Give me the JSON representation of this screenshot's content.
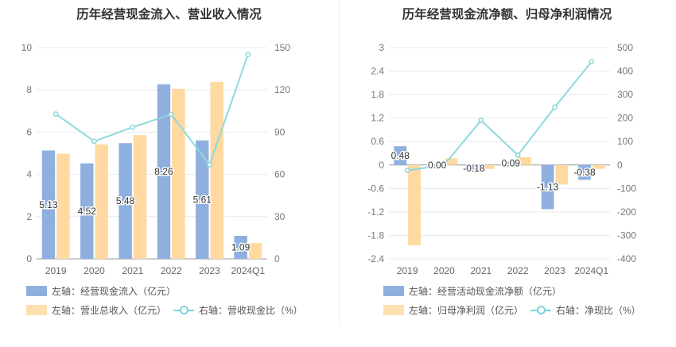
{
  "colors": {
    "bar1": "#8fb0de",
    "bar2": "#ffd9a0",
    "line": "#8fd9dd",
    "grid": "#e6e9f0",
    "axis": "#666666"
  },
  "chart_data": [
    {
      "type": "bar",
      "title": "历年经营现金流入、营业收入情况",
      "categories": [
        "2019",
        "2020",
        "2021",
        "2022",
        "2023",
        "2024Q1"
      ],
      "series": [
        {
          "name": "左轴：经营现金流入（亿元）",
          "axis": "left",
          "kind": "bar",
          "values": [
            5.13,
            4.52,
            5.48,
            8.26,
            5.61,
            1.09
          ],
          "labels": [
            "5.13",
            "4.52",
            "5.48",
            "8.26",
            "5.61",
            "1.09"
          ]
        },
        {
          "name": "左轴：营业总收入（亿元）",
          "axis": "left",
          "kind": "bar",
          "values": [
            4.98,
            5.42,
            5.86,
            8.05,
            8.38,
            0.75
          ]
        },
        {
          "name": "右轴：营收现金比（%）",
          "axis": "right",
          "kind": "line",
          "values": [
            102.9,
            83.5,
            93.5,
            102.6,
            66.9,
            145.1
          ]
        }
      ],
      "left_ticks": [
        "0",
        "2",
        "4",
        "6",
        "8",
        "10"
      ],
      "right_ticks": [
        "0",
        "30",
        "60",
        "90",
        "120",
        "150"
      ],
      "ylim_left": [
        0,
        10
      ],
      "ylim_right": [
        0,
        150
      ],
      "grid": true,
      "legend_position": "bottom"
    },
    {
      "type": "bar",
      "title": "历年经营现金流净额、归母净利润情况",
      "categories": [
        "2019",
        "2020",
        "2021",
        "2022",
        "2023",
        "2024Q1"
      ],
      "series": [
        {
          "name": "左轴：经营活动现金流净额（亿元）",
          "axis": "left",
          "kind": "bar",
          "values": [
            0.48,
            0.0,
            -0.18,
            0.09,
            -1.13,
            -0.38
          ],
          "labels": [
            "0.48",
            "0.00",
            "-0.18",
            "0.09",
            "-1.13",
            "-0.38"
          ]
        },
        {
          "name": "左轴：归母净利润（亿元）",
          "axis": "left",
          "kind": "bar",
          "values": [
            -2.05,
            0.17,
            -0.1,
            0.2,
            -0.5,
            -0.1
          ]
        },
        {
          "name": "右轴：净现比（%）",
          "axis": "right",
          "kind": "line",
          "values": [
            -23,
            0,
            190,
            42,
            246,
            440
          ]
        }
      ],
      "left_ticks": [
        "-2.4",
        "-1.8",
        "-1.2",
        "-0.6",
        "0",
        "0.6",
        "1.2",
        "1.8",
        "2.4",
        "3"
      ],
      "right_ticks": [
        "-400",
        "-300",
        "-200",
        "-100",
        "0",
        "100",
        "200",
        "300",
        "400",
        "500"
      ],
      "ylim_left": [
        -2.4,
        3
      ],
      "ylim_right": [
        -400,
        500
      ],
      "grid": true,
      "legend_position": "bottom"
    }
  ]
}
